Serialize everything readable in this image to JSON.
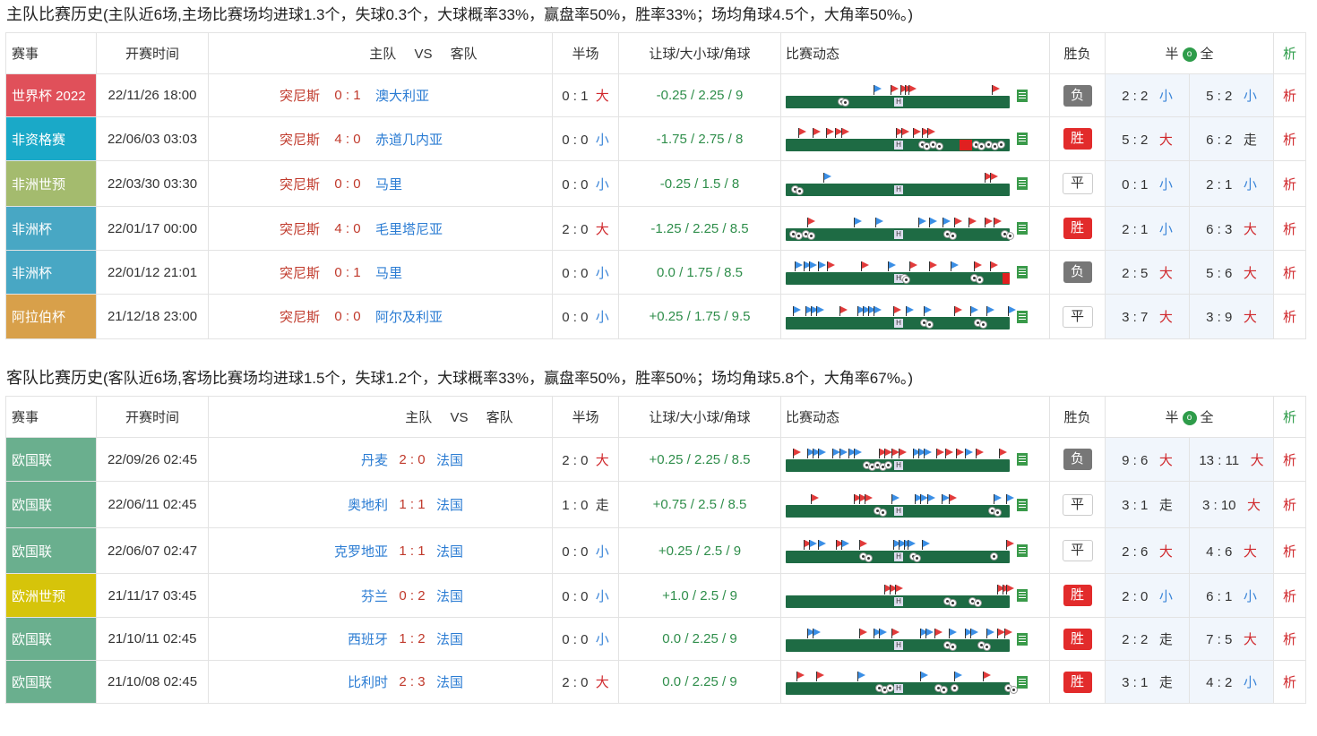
{
  "home_section": {
    "title": "主队比赛历史",
    "note": "(主队近6场,主场比赛场均进球1.3个，失球0.3个，大球概率33%，赢盘率50%，胜率33%；场均角球4.5个，大角率50%。)"
  },
  "away_section": {
    "title": "客队比赛历史",
    "note": "(客队近6场,客场比赛场均进球1.5个，失球1.2个，大球概率33%，赢盘率50%，胜率50%；场均角球5.8个，大角率67%。)"
  },
  "headers": {
    "event": "赛事",
    "time": "开赛时间",
    "home": "主队",
    "vs": "VS",
    "away": "客队",
    "half": "半场",
    "odds": "让球/大小球/角球",
    "dynamic": "比赛动态",
    "result": "胜负",
    "hf_left": "半",
    "hf_icon": "o",
    "hf_right": "全",
    "analysis": "析"
  },
  "colors": {
    "world_cup": "#e0505a",
    "friendly": "#1aa9c8",
    "afr_wc": "#a4bb6e",
    "afcon": "#48a7c4",
    "arab": "#d8a04a",
    "uefa_nl": "#6aaf8e",
    "euro_wc": "#d6c40a"
  },
  "home_matches": [
    {
      "event": "世界杯 2022",
      "color": "#e0505a",
      "time": "22/11/26 18:00",
      "home": "突尼斯",
      "score": "0 : 1",
      "away": "澳大利亚",
      "half": "0 : 1",
      "half_tag": "大",
      "half_tag_color": "red",
      "odds": "-0.25 / 2.25 / 9",
      "result": "负",
      "result_type": "lose",
      "hf1": "2 : 2",
      "hf1_tag": "小",
      "hf1_color": "blue",
      "hf2": "5 : 2",
      "hf2_tag": "小",
      "hf2_color": "blue",
      "ana": "析"
    },
    {
      "event": "非资格赛",
      "color": "#1aa9c8",
      "time": "22/06/03 03:03",
      "home": "突尼斯",
      "score": "4 : 0",
      "away": "赤道几内亚",
      "half": "0 : 0",
      "half_tag": "小",
      "half_tag_color": "blue",
      "odds": "-1.75 / 2.75 / 8",
      "result": "胜",
      "result_type": "win",
      "hf1": "5 : 2",
      "hf1_tag": "大",
      "hf1_color": "red",
      "hf2": "6 : 2",
      "hf2_tag": "走",
      "hf2_color": "black",
      "ana": "析"
    },
    {
      "event": "非洲世预",
      "color": "#a4bb6e",
      "time": "22/03/30 03:30",
      "home": "突尼斯",
      "score": "0 : 0",
      "away": "马里",
      "half": "0 : 0",
      "half_tag": "小",
      "half_tag_color": "blue",
      "odds": "-0.25 / 1.5 / 8",
      "result": "平",
      "result_type": "draw",
      "hf1": "0 : 1",
      "hf1_tag": "小",
      "hf1_color": "blue",
      "hf2": "2 : 1",
      "hf2_tag": "小",
      "hf2_color": "blue",
      "ana": "析"
    },
    {
      "event": "非洲杯",
      "color": "#48a7c4",
      "time": "22/01/17 00:00",
      "home": "突尼斯",
      "score": "4 : 0",
      "away": "毛里塔尼亚",
      "half": "2 : 0",
      "half_tag": "大",
      "half_tag_color": "red",
      "odds": "-1.25 / 2.25 / 8.5",
      "result": "胜",
      "result_type": "win",
      "hf1": "2 : 1",
      "hf1_tag": "小",
      "hf1_color": "blue",
      "hf2": "6 : 3",
      "hf2_tag": "大",
      "hf2_color": "red",
      "ana": "析"
    },
    {
      "event": "非洲杯",
      "color": "#48a7c4",
      "time": "22/01/12 21:01",
      "home": "突尼斯",
      "score": "0 : 1",
      "away": "马里",
      "half": "0 : 0",
      "half_tag": "小",
      "half_tag_color": "blue",
      "odds": "0.0 / 1.75 / 8.5",
      "result": "负",
      "result_type": "lose",
      "hf1": "2 : 5",
      "hf1_tag": "大",
      "hf1_color": "red",
      "hf2": "5 : 6",
      "hf2_tag": "大",
      "hf2_color": "red",
      "ana": "析"
    },
    {
      "event": "阿拉伯杯",
      "color": "#d8a04a",
      "time": "21/12/18 23:00",
      "home": "突尼斯",
      "score": "0 : 0",
      "away": "阿尔及利亚",
      "half": "0 : 0",
      "half_tag": "小",
      "half_tag_color": "blue",
      "odds": "+0.25 / 1.75 / 9.5",
      "result": "平",
      "result_type": "draw",
      "hf1": "3 : 7",
      "hf1_tag": "大",
      "hf1_color": "red",
      "hf2": "3 : 9",
      "hf2_tag": "大",
      "hf2_color": "red",
      "ana": "析"
    }
  ],
  "away_matches": [
    {
      "event": "欧国联",
      "color": "#6aaf8e",
      "time": "22/09/26 02:45",
      "home": "丹麦",
      "score": "2 : 0",
      "away": "法国",
      "half": "2 : 0",
      "half_tag": "大",
      "half_tag_color": "red",
      "odds": "+0.25 / 2.25 / 8.5",
      "result": "负",
      "result_type": "lose",
      "hf1": "9 : 6",
      "hf1_tag": "大",
      "hf1_color": "red",
      "hf2": "13 : 11",
      "hf2_tag": "大",
      "hf2_color": "red",
      "ana": "析"
    },
    {
      "event": "欧国联",
      "color": "#6aaf8e",
      "time": "22/06/11 02:45",
      "home": "奥地利",
      "score": "1 : 1",
      "away": "法国",
      "half": "1 : 0",
      "half_tag": "走",
      "half_tag_color": "black",
      "odds": "+0.75 / 2.5 / 8.5",
      "result": "平",
      "result_type": "draw",
      "hf1": "3 : 1",
      "hf1_tag": "走",
      "hf1_color": "black",
      "hf2": "3 : 10",
      "hf2_tag": "大",
      "hf2_color": "red",
      "ana": "析"
    },
    {
      "event": "欧国联",
      "color": "#6aaf8e",
      "time": "22/06/07 02:47",
      "home": "克罗地亚",
      "score": "1 : 1",
      "away": "法国",
      "half": "0 : 0",
      "half_tag": "小",
      "half_tag_color": "blue",
      "odds": "+0.25 / 2.5 / 9",
      "result": "平",
      "result_type": "draw",
      "hf1": "2 : 6",
      "hf1_tag": "大",
      "hf1_color": "red",
      "hf2": "4 : 6",
      "hf2_tag": "大",
      "hf2_color": "red",
      "ana": "析"
    },
    {
      "event": "欧洲世预",
      "color": "#d6c40a",
      "time": "21/11/17 03:45",
      "home": "芬兰",
      "score": "0 : 2",
      "away": "法国",
      "half": "0 : 0",
      "half_tag": "小",
      "half_tag_color": "blue",
      "odds": "+1.0 / 2.5 / 9",
      "result": "胜",
      "result_type": "win",
      "hf1": "2 : 0",
      "hf1_tag": "小",
      "hf1_color": "blue",
      "hf2": "6 : 1",
      "hf2_tag": "小",
      "hf2_color": "blue",
      "ana": "析"
    },
    {
      "event": "欧国联",
      "color": "#6aaf8e",
      "time": "21/10/11 02:45",
      "home": "西班牙",
      "score": "1 : 2",
      "away": "法国",
      "half": "0 : 0",
      "half_tag": "小",
      "half_tag_color": "blue",
      "odds": "0.0 / 2.25 / 9",
      "result": "胜",
      "result_type": "win",
      "hf1": "2 : 2",
      "hf1_tag": "走",
      "hf1_color": "black",
      "hf2": "7 : 5",
      "hf2_tag": "大",
      "hf2_color": "red",
      "ana": "析"
    },
    {
      "event": "欧国联",
      "color": "#6aaf8e",
      "time": "21/10/08 02:45",
      "home": "比利时",
      "score": "2 : 3",
      "away": "法国",
      "half": "2 : 0",
      "half_tag": "大",
      "half_tag_color": "red",
      "odds": "0.0 / 2.25 / 9",
      "result": "胜",
      "result_type": "win",
      "hf1": "3 : 1",
      "hf1_tag": "走",
      "hf1_color": "black",
      "hf2": "4 : 2",
      "hf2_tag": "小",
      "hf2_color": "blue",
      "ana": "析"
    }
  ]
}
